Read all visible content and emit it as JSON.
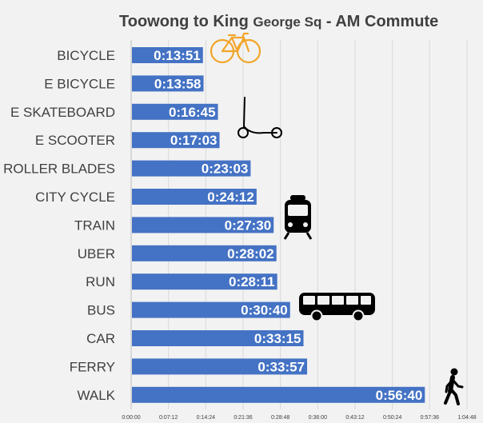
{
  "chart_data": {
    "type": "bar",
    "orientation": "horizontal",
    "title": "Toowong to King George Sq - AM Commute",
    "title_parts": [
      "Toowong to King ",
      "George Sq",
      " - AM Commute"
    ],
    "categories": [
      "BICYCLE",
      "E BICYCLE",
      "E SKATEBOARD",
      "E SCOOTER",
      "ROLLER BLADES",
      "CITY CYCLE",
      "TRAIN",
      "UBER",
      "RUN",
      "BUS",
      "CAR",
      "FERRY",
      "WALK"
    ],
    "values": [
      "0:13:51",
      "0:13:58",
      "0:16:45",
      "0:17:03",
      "0:23:03",
      "0:24:12",
      "0:27:30",
      "0:28:02",
      "0:28:11",
      "0:30:40",
      "0:33:15",
      "0:33:57",
      "0:56:40"
    ],
    "xlim": [
      "0:00:00",
      "1:04:48"
    ],
    "x_ticks": [
      "0:00:00",
      "0:07:12",
      "0:14:24",
      "0:21:36",
      "0:28:48",
      "0:36:00",
      "0:43:12",
      "0:50:24",
      "0:57:36",
      "1:04:48"
    ],
    "grid": true,
    "bar_color": "#4472c4",
    "background": "#f2f2f2"
  },
  "icons": [
    "bicycle-icon",
    "scooter-icon",
    "train-icon",
    "bus-icon",
    "walking-person-icon"
  ],
  "icon_colors": {
    "bicycle": "#f2a52a",
    "default": "#000000"
  }
}
